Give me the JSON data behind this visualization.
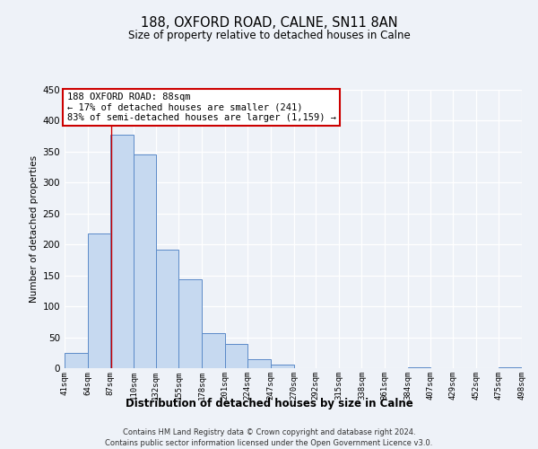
{
  "title": "188, OXFORD ROAD, CALNE, SN11 8AN",
  "subtitle": "Size of property relative to detached houses in Calne",
  "xlabel": "Distribution of detached houses by size in Calne",
  "ylabel": "Number of detached properties",
  "bin_edges": [
    41,
    64,
    87,
    110,
    132,
    155,
    178,
    201,
    224,
    247,
    270,
    292,
    315,
    338,
    361,
    384,
    407,
    429,
    452,
    475,
    498
  ],
  "bin_labels": [
    "41sqm",
    "64sqm",
    "87sqm",
    "110sqm",
    "132sqm",
    "155sqm",
    "178sqm",
    "201sqm",
    "224sqm",
    "247sqm",
    "270sqm",
    "292sqm",
    "315sqm",
    "338sqm",
    "361sqm",
    "384sqm",
    "407sqm",
    "429sqm",
    "452sqm",
    "475sqm",
    "498sqm"
  ],
  "bar_heights": [
    24,
    218,
    378,
    345,
    192,
    143,
    56,
    39,
    14,
    6,
    0,
    0,
    0,
    0,
    0,
    1,
    0,
    0,
    0,
    1
  ],
  "bar_color": "#c6d9f0",
  "bar_edge_color": "#5b8ac8",
  "property_line_x": 88,
  "property_line_color": "#cc0000",
  "annotation_text_line1": "188 OXFORD ROAD: 88sqm",
  "annotation_text_line2": "← 17% of detached houses are smaller (241)",
  "annotation_text_line3": "83% of semi-detached houses are larger (1,159) →",
  "annotation_box_color": "#ffffff",
  "annotation_box_edge": "#cc0000",
  "ylim": [
    0,
    450
  ],
  "yticks": [
    0,
    50,
    100,
    150,
    200,
    250,
    300,
    350,
    400,
    450
  ],
  "footer_line1": "Contains HM Land Registry data © Crown copyright and database right 2024.",
  "footer_line2": "Contains public sector information licensed under the Open Government Licence v3.0.",
  "background_color": "#eef2f8",
  "grid_color": "#ffffff",
  "fig_width": 6.0,
  "fig_height": 5.0,
  "dpi": 100
}
